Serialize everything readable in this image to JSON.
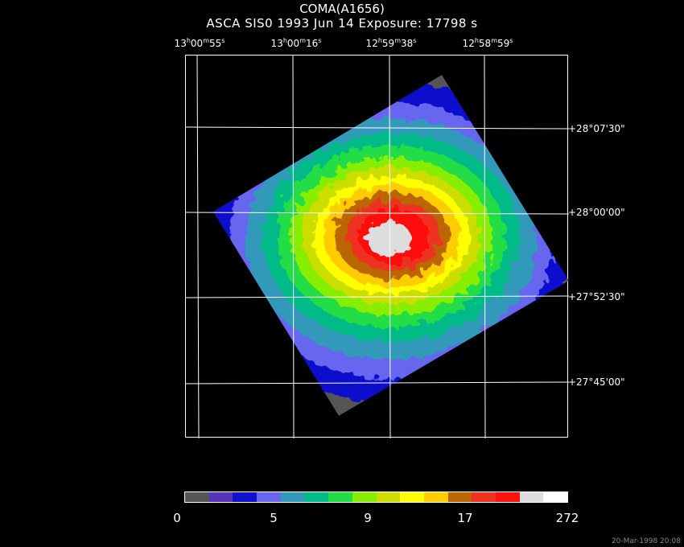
{
  "title": "COMA(A1656)",
  "subtitle": "ASCA SIS0    1993 Jun 14    Exposure: 17798 s",
  "ra_labels": [
    {
      "h": "13",
      "m": "00",
      "s": "55"
    },
    {
      "h": "13",
      "m": "00",
      "s": "16"
    },
    {
      "h": "12",
      "m": "59",
      "s": "38"
    },
    {
      "h": "12",
      "m": "58",
      "s": "59"
    }
  ],
  "dec_labels": [
    "+28°07'30\"",
    "+28°00'00\"",
    "+27°52'30\"",
    "+27°45'00\""
  ],
  "colorbar": {
    "colors": [
      "#555555",
      "#5533bb",
      "#1111cc",
      "#6666ee",
      "#3399bb",
      "#00bb88",
      "#22dd44",
      "#88ee00",
      "#ccdd00",
      "#ffff00",
      "#ffcc00",
      "#bb6600",
      "#ee3322",
      "#ff1111",
      "#dddddd",
      "#ffffff"
    ],
    "ticks": [
      "0",
      "5",
      "9",
      "17",
      "272"
    ]
  },
  "timestamp": "20-Mar-1998 20:08"
}
